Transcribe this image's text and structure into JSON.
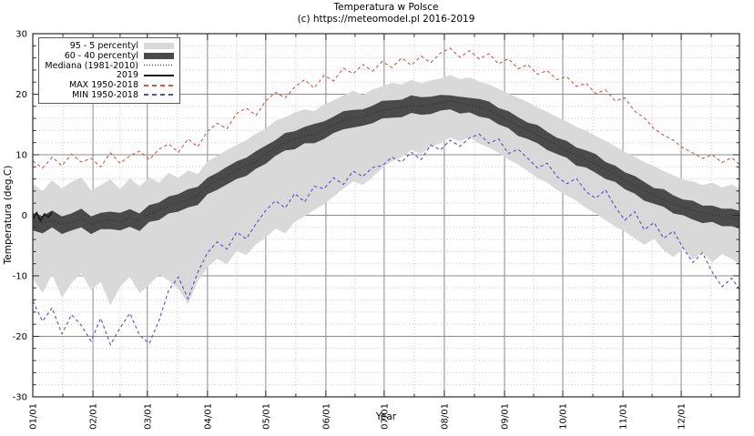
{
  "title": "Temperatura w Polsce",
  "subtitle": "(c) https://meteomodel.pl 2016-2019",
  "colors": {
    "band_95_5": "#d9d9d9",
    "band_60_40": "#4a4a4a",
    "median": "#2b2b2b",
    "line_2019": "#1a1a1a",
    "max_red": "#d25549",
    "min_blue": "#5352c4",
    "grid_major": "#8c8c8c",
    "grid_minor": "#c6c6c6",
    "axis": "#2b2b2b",
    "legend_border": "#5a5a5a",
    "background": "#ffffff"
  },
  "legend": {
    "items": [
      {
        "label": "95 - 5 percentyl",
        "sample": "band-light"
      },
      {
        "label": "60 - 40 percentyl",
        "sample": "band-dark"
      },
      {
        "label": "Mediana (1981-2010)",
        "sample": "dotted"
      },
      {
        "label": "2019",
        "sample": "solid"
      },
      {
        "label": "MAX 1950-2018",
        "sample": "dash-red"
      },
      {
        "label": "MIN 1950-2018",
        "sample": "dash-blue"
      }
    ]
  },
  "chart_data": {
    "type": "line",
    "title": "Temperatura w Polsce",
    "subtitle": "(c) https://meteomodel.pl 2016-2019",
    "xlabel": "Year",
    "ylabel": "Temperatura (deg.C)",
    "ylim": [
      -30,
      30
    ],
    "y_ticks": [
      30,
      20,
      10,
      0,
      -10,
      -20,
      -30
    ],
    "y_minor_step": 2,
    "x_tick_labels": [
      "01/01",
      "02/01",
      "03/01",
      "04/01",
      "05/01",
      "06/01",
      "07/01",
      "08/01",
      "09/01",
      "10/01",
      "11/01",
      "12/01"
    ],
    "x_unit": "day_of_year",
    "month_start_days": [
      1,
      32,
      60,
      91,
      121,
      152,
      182,
      213,
      244,
      274,
      305,
      335
    ],
    "grid": "major-solid, minor-dotted (2 deg horizontal, mid-month vertical)",
    "legend_position": "top-left",
    "x": [
      1,
      6,
      11,
      16,
      21,
      26,
      31,
      36,
      41,
      46,
      51,
      56,
      61,
      66,
      71,
      76,
      81,
      86,
      91,
      96,
      101,
      106,
      111,
      116,
      121,
      126,
      131,
      136,
      141,
      146,
      151,
      156,
      161,
      166,
      171,
      176,
      181,
      186,
      191,
      196,
      201,
      206,
      211,
      216,
      221,
      226,
      231,
      236,
      241,
      246,
      251,
      256,
      261,
      266,
      271,
      276,
      281,
      286,
      291,
      296,
      301,
      306,
      311,
      316,
      321,
      326,
      331,
      336,
      341,
      346,
      351,
      356,
      361,
      365
    ],
    "series": [
      {
        "name": "95 - 5 percentyl",
        "type": "band",
        "upper": [
          5.2,
          4.0,
          5.8,
          4.4,
          5.5,
          6.3,
          4.1,
          5.0,
          5.9,
          4.3,
          6.1,
          4.8,
          6.3,
          5.4,
          7.0,
          6.2,
          7.4,
          6.8,
          8.9,
          9.8,
          10.8,
          11.6,
          12.4,
          13.5,
          14.3,
          15.6,
          16.2,
          17.0,
          17.5,
          17.2,
          18.3,
          19.0,
          19.8,
          20.6,
          19.9,
          20.8,
          21.3,
          21.9,
          21.6,
          22.4,
          21.8,
          22.3,
          22.6,
          23.2,
          22.5,
          22.8,
          22.1,
          21.6,
          20.9,
          20.1,
          19.4,
          18.7,
          17.8,
          17.1,
          16.2,
          15.5,
          14.6,
          14.0,
          13.1,
          12.3,
          11.4,
          10.5,
          9.7,
          8.8,
          8.1,
          7.3,
          6.6,
          5.9,
          5.6,
          5.0,
          5.4,
          4.6,
          5.1,
          4.4
        ],
        "lower": [
          -10.5,
          -12.8,
          -9.8,
          -13.6,
          -11.2,
          -9.5,
          -12.4,
          -11.0,
          -14.9,
          -11.8,
          -10.2,
          -12.9,
          -11.5,
          -9.8,
          -10.8,
          -12.2,
          -14.6,
          -10.9,
          -8.6,
          -7.2,
          -8.1,
          -5.9,
          -6.6,
          -4.8,
          -3.7,
          -2.2,
          -3.0,
          -1.1,
          -0.2,
          0.9,
          1.8,
          3.1,
          4.4,
          5.6,
          5.0,
          6.3,
          7.8,
          8.9,
          9.6,
          10.8,
          10.2,
          11.3,
          11.9,
          12.8,
          12.2,
          12.9,
          11.8,
          11.2,
          10.3,
          9.2,
          8.4,
          7.3,
          6.1,
          5.4,
          4.2,
          3.3,
          2.4,
          1.2,
          0.3,
          -0.8,
          -1.9,
          -2.7,
          -3.8,
          -4.9,
          -3.9,
          -5.8,
          -6.9,
          -5.5,
          -7.3,
          -6.1,
          -7.8,
          -6.4,
          -7.2,
          -8.1
        ]
      },
      {
        "name": "60 - 40 percentyl",
        "type": "band",
        "upper": [
          0.4,
          -0.1,
          0.8,
          -0.2,
          0.3,
          1.1,
          -0.2,
          0.4,
          0.6,
          0.4,
          1.0,
          0.3,
          1.7,
          2.1,
          3.1,
          3.5,
          4.3,
          4.7,
          6.2,
          7.0,
          8.0,
          8.9,
          9.5,
          10.6,
          11.5,
          12.4,
          13.6,
          13.9,
          14.6,
          15.1,
          15.5,
          16.3,
          17.2,
          17.4,
          17.5,
          18.1,
          18.9,
          19.0,
          19.1,
          19.8,
          19.5,
          19.6,
          19.9,
          19.8,
          19.6,
          19.4,
          19.2,
          18.8,
          17.7,
          17.2,
          16.2,
          15.3,
          14.9,
          13.8,
          12.8,
          12.3,
          11.2,
          10.7,
          10.1,
          8.8,
          8.2,
          7.1,
          6.5,
          5.5,
          4.5,
          4.3,
          3.3,
          2.6,
          2.4,
          1.6,
          1.6,
          1.1,
          1.1,
          0.7
        ],
        "lower": [
          -2.5,
          -3.0,
          -2.0,
          -3.1,
          -2.5,
          -2.0,
          -3.1,
          -2.3,
          -2.3,
          -2.5,
          -1.9,
          -2.6,
          -1.1,
          -0.8,
          0.3,
          0.6,
          1.3,
          1.7,
          3.5,
          4.2,
          5.1,
          6.0,
          6.5,
          7.7,
          8.5,
          9.8,
          10.7,
          10.9,
          11.9,
          11.9,
          12.6,
          13.6,
          14.2,
          14.5,
          14.8,
          15.2,
          16.0,
          16.1,
          16.2,
          16.9,
          16.6,
          16.7,
          17.3,
          17.5,
          16.8,
          17.0,
          16.3,
          16.0,
          15.0,
          14.4,
          13.1,
          12.6,
          11.9,
          10.8,
          10.1,
          9.5,
          8.2,
          7.9,
          7.0,
          6.0,
          5.5,
          4.3,
          3.6,
          2.4,
          1.9,
          1.4,
          0.3,
          0.0,
          -0.7,
          -1.3,
          -1.1,
          -1.8,
          -1.8,
          -2.2
        ]
      },
      {
        "name": "Mediana (1981-2010)",
        "type": "line",
        "style": "dotted",
        "values": [
          -1.0,
          -1.3,
          -0.8,
          -1.5,
          -1.2,
          -0.6,
          -1.4,
          -1.1,
          -0.7,
          -1.2,
          -0.4,
          -0.9,
          0.2,
          0.8,
          1.5,
          2.1,
          2.6,
          3.4,
          4.7,
          5.8,
          6.4,
          7.5,
          8.2,
          8.9,
          10.1,
          11.2,
          12.0,
          12.6,
          13.1,
          13.4,
          14.2,
          14.9,
          15.6,
          16.2,
          16.0,
          16.8,
          17.3,
          17.6,
          17.9,
          18.1,
          18.0,
          18.3,
          18.6,
          19.0,
          18.5,
          18.2,
          17.9,
          17.3,
          16.5,
          15.6,
          14.8,
          14.0,
          13.2,
          12.4,
          11.6,
          10.7,
          9.9,
          9.2,
          8.4,
          7.6,
          6.7,
          5.8,
          4.9,
          4.1,
          3.3,
          2.6,
          1.9,
          1.3,
          0.8,
          0.4,
          0.1,
          -0.2,
          -0.5,
          -0.7
        ]
      },
      {
        "name": "2019",
        "type": "line",
        "style": "solid",
        "x": [
          1,
          3,
          5,
          7,
          9,
          11
        ],
        "values": [
          -0.6,
          0.4,
          -0.9,
          0.2,
          -0.3,
          0.5
        ]
      },
      {
        "name": "MAX 1950-2018",
        "type": "line",
        "style": "dashed",
        "values": [
          9.0,
          7.8,
          9.6,
          8.2,
          10.1,
          8.8,
          9.4,
          8.0,
          10.3,
          8.6,
          9.8,
          10.6,
          9.2,
          10.9,
          11.8,
          10.4,
          12.6,
          11.3,
          13.9,
          15.2,
          14.3,
          16.8,
          17.7,
          16.5,
          18.9,
          20.3,
          19.4,
          21.2,
          22.4,
          21.0,
          23.1,
          22.2,
          24.3,
          23.4,
          24.9,
          23.8,
          25.4,
          24.4,
          26.0,
          24.8,
          26.3,
          25.2,
          26.8,
          27.6,
          26.1,
          27.2,
          25.8,
          26.7,
          25.0,
          25.9,
          24.2,
          24.9,
          23.3,
          23.9,
          22.4,
          22.9,
          21.3,
          21.8,
          20.1,
          20.7,
          18.9,
          19.4,
          17.2,
          16.1,
          14.3,
          13.2,
          12.4,
          11.1,
          10.3,
          9.4,
          10.0,
          8.7,
          9.5,
          8.4
        ]
      },
      {
        "name": "MIN 1950-2018",
        "type": "line",
        "style": "dashed",
        "values": [
          -14.2,
          -17.5,
          -15.3,
          -19.6,
          -16.4,
          -18.2,
          -20.8,
          -17.0,
          -21.4,
          -18.6,
          -16.2,
          -19.8,
          -21.2,
          -17.4,
          -12.4,
          -10.2,
          -13.8,
          -9.4,
          -6.2,
          -4.4,
          -5.6,
          -2.8,
          -3.9,
          -1.4,
          0.8,
          2.4,
          1.2,
          3.6,
          2.2,
          4.8,
          4.4,
          6.2,
          5.1,
          7.3,
          6.4,
          7.9,
          8.2,
          9.6,
          8.8,
          10.4,
          9.2,
          11.6,
          10.8,
          12.4,
          11.4,
          12.8,
          13.4,
          11.9,
          12.6,
          10.2,
          10.9,
          9.4,
          7.8,
          8.6,
          6.4,
          5.2,
          6.1,
          3.9,
          2.8,
          4.2,
          1.4,
          -0.8,
          0.6,
          -2.4,
          -1.2,
          -3.8,
          -2.6,
          -5.4,
          -7.8,
          -6.2,
          -9.4,
          -11.8,
          -10.4,
          -12.2
        ]
      }
    ]
  }
}
